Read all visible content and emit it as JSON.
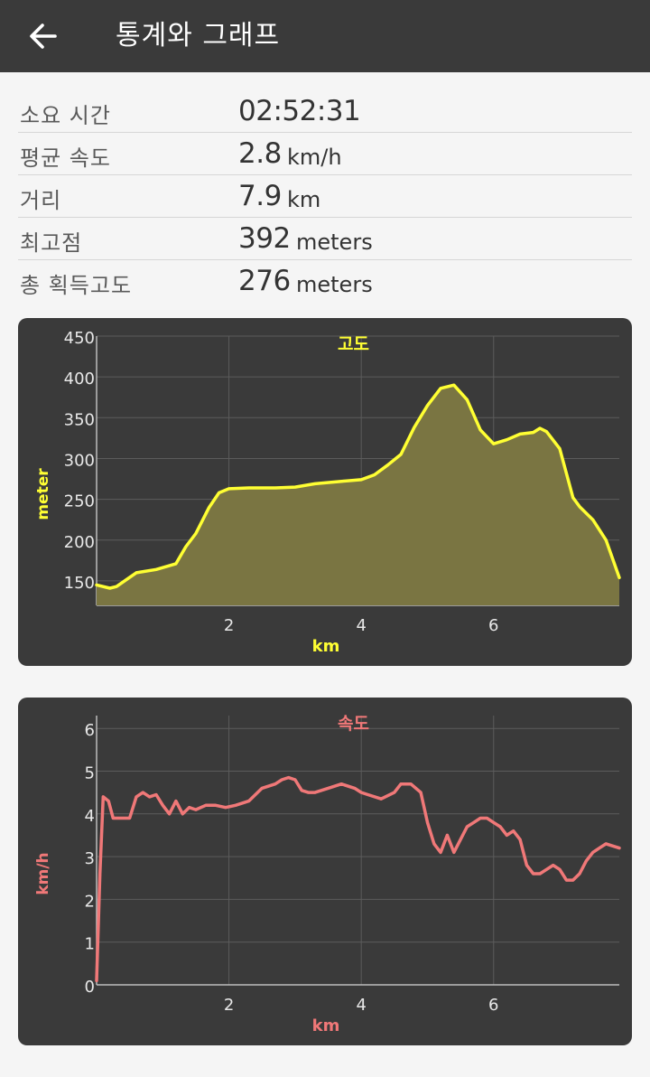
{
  "header": {
    "title": "통계와 그래프",
    "back_icon": "arrow-left-icon"
  },
  "stats": [
    {
      "label": "소요 시간",
      "value": "02:52:31",
      "unit": ""
    },
    {
      "label": "평균 속도",
      "value": "2.8",
      "unit": "km/h"
    },
    {
      "label": "거리",
      "value": "7.9",
      "unit": "km"
    },
    {
      "label": "최고점",
      "value": "392",
      "unit": "meters"
    },
    {
      "label": "총 획득고도",
      "value": "276",
      "unit": "meters"
    }
  ],
  "chart_data": [
    {
      "type": "area",
      "title": "고도",
      "xlabel": "km",
      "ylabel": "meter",
      "xlim": [
        0,
        7.9
      ],
      "ylim": [
        120,
        450
      ],
      "xticks": [
        "2",
        "4",
        "6"
      ],
      "yticks": [
        "150",
        "200",
        "250",
        "300",
        "350",
        "400",
        "450"
      ],
      "grid": true,
      "color": "#ffff33",
      "fill": "#7a7542",
      "x": [
        0,
        0.2,
        0.3,
        0.6,
        0.9,
        1.2,
        1.35,
        1.5,
        1.7,
        1.85,
        2.0,
        2.3,
        2.7,
        3.0,
        3.3,
        3.7,
        4.0,
        4.2,
        4.4,
        4.6,
        4.8,
        5.0,
        5.2,
        5.4,
        5.6,
        5.8,
        6.0,
        6.2,
        6.4,
        6.6,
        6.7,
        6.8,
        7.0,
        7.2,
        7.3,
        7.5,
        7.7,
        7.9
      ],
      "values": [
        145,
        141,
        143,
        160,
        164,
        171,
        192,
        208,
        240,
        258,
        263,
        264,
        264,
        265,
        269,
        272,
        274,
        280,
        292,
        305,
        338,
        365,
        386,
        390,
        372,
        335,
        318,
        323,
        330,
        332,
        337,
        333,
        312,
        252,
        241,
        225,
        200,
        154
      ]
    },
    {
      "type": "line",
      "title": "속도",
      "xlabel": "km",
      "ylabel": "km/h",
      "xlim": [
        0,
        7.9
      ],
      "ylim": [
        0,
        6.3
      ],
      "xticks": [
        "2",
        "4",
        "6"
      ],
      "yticks": [
        "0",
        "1",
        "2",
        "3",
        "4",
        "5",
        "6"
      ],
      "grid": true,
      "color": "#f07878",
      "x": [
        0.0,
        0.05,
        0.1,
        0.18,
        0.25,
        0.35,
        0.5,
        0.6,
        0.7,
        0.8,
        0.9,
        1.0,
        1.1,
        1.2,
        1.3,
        1.4,
        1.5,
        1.65,
        1.8,
        1.95,
        2.1,
        2.3,
        2.5,
        2.7,
        2.8,
        2.9,
        3.0,
        3.1,
        3.2,
        3.3,
        3.5,
        3.7,
        3.9,
        4.0,
        4.1,
        4.3,
        4.5,
        4.6,
        4.75,
        4.9,
        5.0,
        5.1,
        5.2,
        5.3,
        5.4,
        5.5,
        5.6,
        5.7,
        5.8,
        5.9,
        6.0,
        6.1,
        6.2,
        6.3,
        6.4,
        6.5,
        6.6,
        6.7,
        6.8,
        6.9,
        7.0,
        7.1,
        7.2,
        7.3,
        7.4,
        7.5,
        7.6,
        7.7,
        7.8,
        7.9
      ],
      "values": [
        0.1,
        2.6,
        4.4,
        4.3,
        3.9,
        3.9,
        3.9,
        4.4,
        4.5,
        4.4,
        4.45,
        4.2,
        4.0,
        4.3,
        4.0,
        4.15,
        4.1,
        4.2,
        4.2,
        4.15,
        4.2,
        4.3,
        4.6,
        4.7,
        4.8,
        4.85,
        4.8,
        4.55,
        4.5,
        4.5,
        4.6,
        4.7,
        4.6,
        4.5,
        4.45,
        4.35,
        4.5,
        4.7,
        4.7,
        4.5,
        3.8,
        3.3,
        3.1,
        3.5,
        3.1,
        3.4,
        3.7,
        3.8,
        3.9,
        3.9,
        3.8,
        3.7,
        3.5,
        3.6,
        3.4,
        2.8,
        2.6,
        2.6,
        2.7,
        2.8,
        2.7,
        2.45,
        2.45,
        2.6,
        2.9,
        3.1,
        3.2,
        3.3,
        3.25,
        3.2
      ]
    }
  ]
}
